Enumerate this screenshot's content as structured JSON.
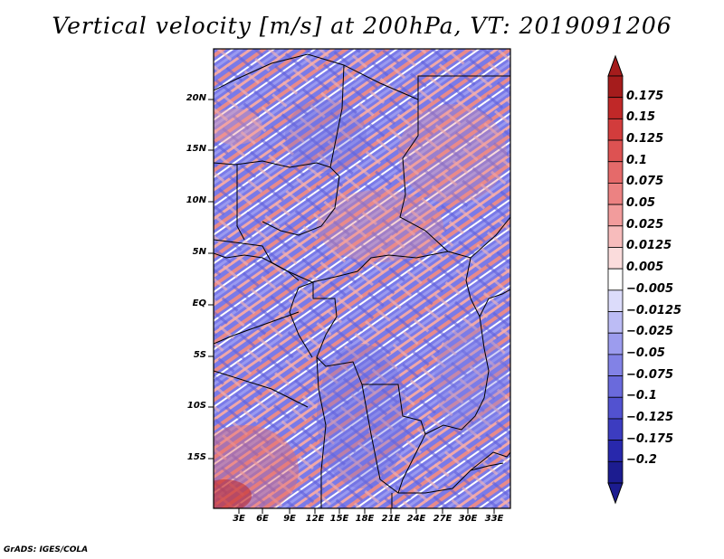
{
  "title": "Vertical velocity [m/s] at 200hPa, VT: 2019091206",
  "credit": "GrADS: IGES/COLA",
  "map": {
    "lon_range": [
      0,
      35
    ],
    "lat_range": [
      -19,
      25
    ],
    "lat_ticks": [
      "20N",
      "15N",
      "10N",
      "5N",
      "EQ",
      "5S",
      "10S",
      "15S"
    ],
    "lon_ticks": [
      "3E",
      "6E",
      "9E",
      "12E",
      "15E",
      "18E",
      "21E",
      "24E",
      "27E",
      "30E",
      "33E"
    ]
  },
  "colorbar": {
    "labels": [
      "0.175",
      "0.15",
      "0.125",
      "0.1",
      "0.075",
      "0.05",
      "0.025",
      "0.0125",
      "0.005",
      "−0.005",
      "−0.0125",
      "−0.025",
      "−0.05",
      "−0.075",
      "−0.1",
      "−0.125",
      "−0.175",
      "−0.2"
    ],
    "colors": [
      "#a51c1c",
      "#c02828",
      "#d23c3c",
      "#dd5252",
      "#e56a6a",
      "#ec8282",
      "#f29c9c",
      "#f7bcbc",
      "#fbdcdc",
      "#ffffff",
      "#dcdcfb",
      "#bcbcf5",
      "#9c9cee",
      "#8282e6",
      "#6a6adc",
      "#5252d0",
      "#3c3cc0",
      "#2828ac",
      "#1c1c90"
    ],
    "top_arrow_color": "#a51c1c",
    "bottom_arrow_color": "#1c1c90"
  }
}
